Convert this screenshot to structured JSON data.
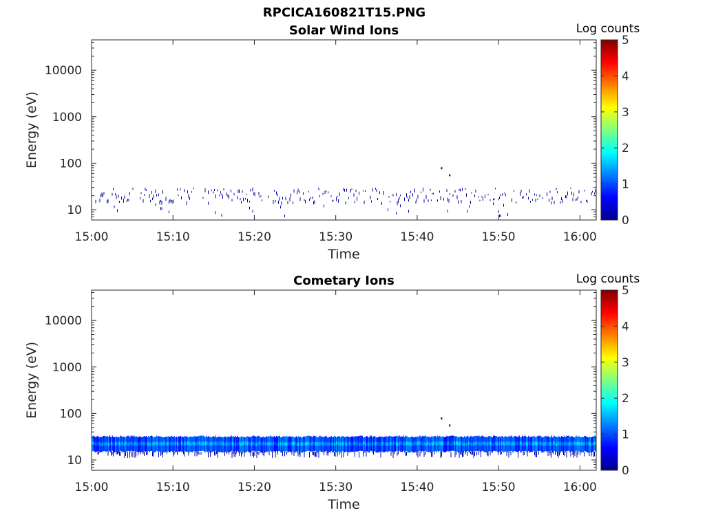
{
  "figure": {
    "title": "RPCICA160821T15.PNG"
  },
  "colorbar": {
    "label": "Log counts",
    "ticks": [
      "0",
      "1",
      "2",
      "3",
      "4",
      "5"
    ],
    "range": [
      0,
      5
    ],
    "colormap": "jet"
  },
  "chart_data": [
    {
      "type": "heatmap",
      "title": "Solar Wind Ions",
      "xlabel": "Time",
      "ylabel": "Energy (eV)",
      "y_scale": "log",
      "ylim": [
        6,
        45000
      ],
      "xlim": [
        "15:00",
        "16:02"
      ],
      "xticks": [
        "15:00",
        "15:10",
        "15:20",
        "15:30",
        "15:40",
        "15:50",
        "16:00"
      ],
      "yticks": [
        "10",
        "100",
        "1000",
        "10000"
      ],
      "grid": false,
      "band": {
        "center_eV": 22,
        "low_eV": 15,
        "high_eV": 30,
        "typical_log_counts": 0.15,
        "density": "sparse"
      },
      "features": [
        {
          "time": "15:43",
          "energy_eV": 78,
          "log_counts": 0.1
        },
        {
          "time": "15:44",
          "energy_eV": 55,
          "log_counts": 0.1
        }
      ]
    },
    {
      "type": "heatmap",
      "title": "Cometary Ions",
      "xlabel": "Time",
      "ylabel": "Energy (eV)",
      "y_scale": "log",
      "ylim": [
        6,
        45000
      ],
      "xlim": [
        "15:00",
        "16:02"
      ],
      "xticks": [
        "15:00",
        "15:10",
        "15:20",
        "15:30",
        "15:40",
        "15:50",
        "16:00"
      ],
      "yticks": [
        "10",
        "100",
        "1000",
        "10000"
      ],
      "grid": false,
      "band": {
        "center_eV": 22,
        "low_eV": 15,
        "high_eV": 32,
        "typical_log_counts": 1.2,
        "density": "dense"
      },
      "features": [
        {
          "time": "15:43",
          "energy_eV": 78,
          "log_counts": 0.1
        },
        {
          "time": "15:44",
          "energy_eV": 55,
          "log_counts": 0.1
        }
      ]
    }
  ]
}
